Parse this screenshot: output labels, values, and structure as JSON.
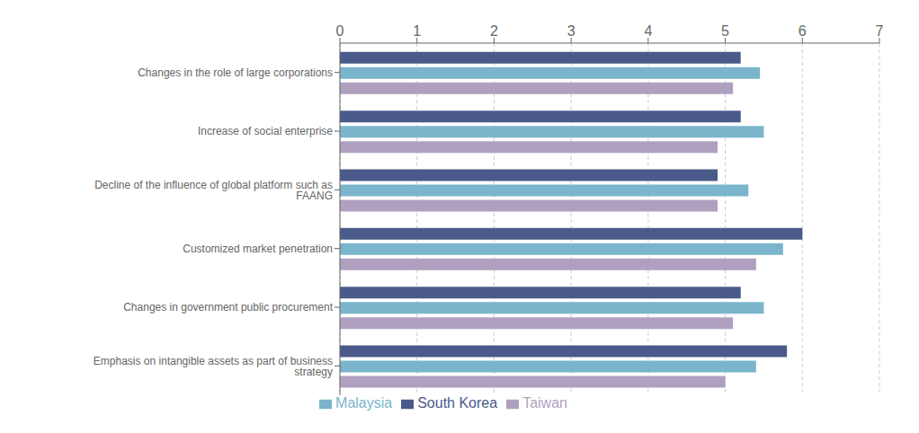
{
  "chart_data": {
    "type": "bar",
    "orientation": "horizontal",
    "categories": [
      "Changes in the role of large corporations",
      "Increase of social enterprise",
      "Decline of the influence of global platform such as FAANG",
      "Customized market penetration",
      "Changes in government public procurement",
      "Emphasis on intangible assets as part of business strategy"
    ],
    "series": [
      {
        "name": "South Korea",
        "color": "#4a5a8a",
        "values": [
          5.2,
          5.2,
          4.9,
          6.0,
          5.2,
          5.8
        ]
      },
      {
        "name": "Malaysia",
        "color": "#7ab5cc",
        "values": [
          5.45,
          5.5,
          5.3,
          5.75,
          5.5,
          5.4
        ]
      },
      {
        "name": "Taiwan",
        "color": "#b0a0bf",
        "values": [
          5.1,
          4.9,
          4.9,
          5.4,
          5.1,
          5.0
        ]
      }
    ],
    "xlim": [
      0,
      7
    ],
    "xticks": [
      0,
      1,
      2,
      3,
      4,
      5,
      6,
      7
    ],
    "grid": true,
    "legend": "bottom"
  }
}
